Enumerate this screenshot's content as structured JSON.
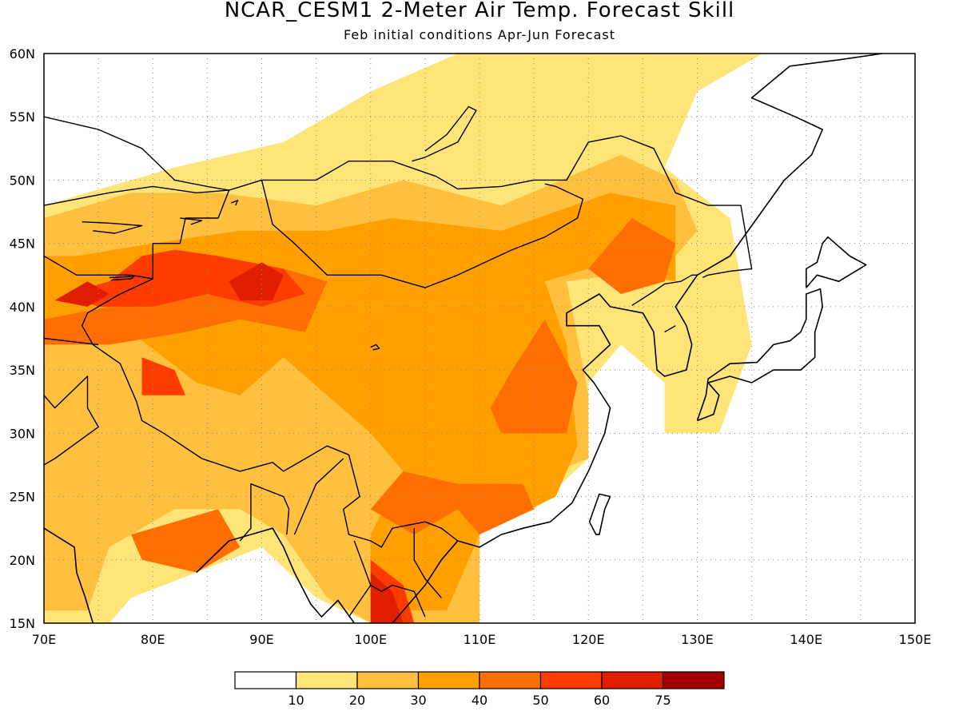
{
  "title": "NCAR_CESM1 2-Meter Air Temp. Forecast Skill",
  "subtitle": "Feb initial conditions  Apr-Jun Forecast",
  "map": {
    "lon_range": [
      70,
      150
    ],
    "lat_range": [
      15,
      60
    ],
    "lon_labels": [
      "70E",
      "80E",
      "90E",
      "100E",
      "110E",
      "120E",
      "130E",
      "140E",
      "150E"
    ],
    "lat_labels": [
      "15N",
      "20N",
      "25N",
      "30N",
      "35N",
      "40N",
      "45N",
      "50N",
      "55N",
      "60N"
    ],
    "grid": "dotted"
  },
  "colorbar": {
    "colors": [
      "#ffffff",
      "#ffe478",
      "#ffc040",
      "#ffa000",
      "#ff6e00",
      "#ff3c00",
      "#e11e00",
      "#a50000"
    ],
    "labels": [
      "10",
      "20",
      "30",
      "40",
      "50",
      "60",
      "75"
    ]
  },
  "fields": {
    "c10": [
      [
        70,
        15
      ],
      [
        76,
        15
      ],
      [
        78,
        17
      ],
      [
        84,
        19
      ],
      [
        90,
        21
      ],
      [
        95,
        17
      ],
      [
        100,
        15
      ],
      [
        110,
        15
      ],
      [
        110,
        24
      ],
      [
        115,
        24
      ],
      [
        120,
        28
      ],
      [
        120,
        34
      ],
      [
        123,
        37
      ],
      [
        127,
        34
      ],
      [
        127,
        30
      ],
      [
        132,
        30
      ],
      [
        135,
        37
      ],
      [
        133,
        47
      ],
      [
        127,
        51
      ],
      [
        130,
        57
      ],
      [
        136,
        60
      ],
      [
        108,
        60
      ],
      [
        100,
        57
      ],
      [
        92,
        53
      ],
      [
        82,
        51
      ],
      [
        70,
        48
      ]
    ],
    "c20": [
      [
        70,
        16
      ],
      [
        74,
        16
      ],
      [
        76,
        21
      ],
      [
        82,
        24
      ],
      [
        88,
        24
      ],
      [
        92,
        22
      ],
      [
        96,
        17
      ],
      [
        100,
        15
      ],
      [
        110,
        15
      ],
      [
        110,
        24
      ],
      [
        114,
        26
      ],
      [
        120,
        28
      ],
      [
        120,
        33
      ],
      [
        118,
        42
      ],
      [
        127,
        43
      ],
      [
        130,
        46
      ],
      [
        128,
        50
      ],
      [
        123,
        52
      ],
      [
        112,
        48
      ],
      [
        103,
        50
      ],
      [
        95,
        48
      ],
      [
        86,
        49
      ],
      [
        78,
        49
      ],
      [
        70,
        47
      ]
    ],
    "c30": [
      [
        70,
        37
      ],
      [
        78,
        38
      ],
      [
        84,
        34
      ],
      [
        88,
        33
      ],
      [
        92,
        36
      ],
      [
        96,
        33
      ],
      [
        100,
        30
      ],
      [
        103,
        27
      ],
      [
        100,
        22
      ],
      [
        100,
        16
      ],
      [
        107,
        16
      ],
      [
        110,
        22
      ],
      [
        117,
        25
      ],
      [
        119,
        29
      ],
      [
        118,
        37
      ],
      [
        116,
        42
      ],
      [
        120,
        43
      ],
      [
        128,
        42
      ],
      [
        128,
        48
      ],
      [
        122,
        49
      ],
      [
        112,
        46
      ],
      [
        102,
        47
      ],
      [
        96,
        46
      ],
      [
        88,
        46
      ],
      [
        80,
        45
      ],
      [
        73,
        44
      ],
      [
        70,
        44
      ]
    ],
    "c40": [
      [
        70,
        39
      ],
      [
        76,
        40
      ],
      [
        80,
        43
      ],
      [
        87,
        42
      ],
      [
        92,
        43
      ],
      [
        96,
        42
      ],
      [
        94,
        38
      ],
      [
        88,
        39
      ],
      [
        83,
        38
      ],
      [
        76,
        37
      ],
      [
        70,
        37
      ]
    ],
    "c40b": [
      [
        112,
        30
      ],
      [
        118,
        30
      ],
      [
        119,
        34
      ],
      [
        116,
        39
      ],
      [
        113,
        35
      ],
      [
        111,
        32
      ]
    ],
    "c40c": [
      [
        100,
        24
      ],
      [
        104,
        22
      ],
      [
        108,
        24
      ],
      [
        110,
        22
      ],
      [
        115,
        24
      ],
      [
        114,
        26
      ],
      [
        108,
        26
      ],
      [
        103,
        27
      ]
    ],
    "c40d": [
      [
        78,
        22
      ],
      [
        86,
        24
      ],
      [
        88,
        21
      ],
      [
        84,
        19
      ],
      [
        79,
        20
      ]
    ],
    "c40e": [
      [
        120,
        43
      ],
      [
        124,
        47
      ],
      [
        128,
        45
      ],
      [
        127,
        42
      ],
      [
        123,
        41
      ]
    ],
    "c50": [
      [
        72,
        41
      ],
      [
        76,
        42
      ],
      [
        79,
        44
      ],
      [
        82,
        44.5
      ],
      [
        86,
        44
      ],
      [
        92,
        43
      ],
      [
        94,
        41
      ],
      [
        90,
        40
      ],
      [
        85,
        41
      ],
      [
        80,
        40
      ],
      [
        75,
        40
      ]
    ],
    "c50b": [
      [
        100,
        15
      ],
      [
        100,
        20
      ],
      [
        103,
        18
      ],
      [
        104,
        15
      ]
    ],
    "c50c": [
      [
        79,
        36
      ],
      [
        82,
        35
      ],
      [
        83,
        33
      ],
      [
        79,
        33
      ]
    ],
    "c60": [
      [
        87,
        42
      ],
      [
        90,
        43.5
      ],
      [
        92,
        42.5
      ],
      [
        91,
        40.5
      ],
      [
        88,
        40.5
      ]
    ],
    "c60b": [
      [
        71,
        40.5
      ],
      [
        74,
        42
      ],
      [
        76,
        41
      ],
      [
        74,
        40
      ]
    ],
    "c60c": [
      [
        100,
        15
      ],
      [
        100,
        19
      ],
      [
        102,
        17.5
      ],
      [
        103,
        15
      ]
    ]
  },
  "coast": [
    [
      70,
      22.5
    ],
    [
      72.8,
      21
    ],
    [
      73,
      19
    ],
    [
      73.8,
      17
    ],
    [
      74.5,
      15
    ]
  ],
  "coast2": [
    [
      84,
      19
    ],
    [
      87,
      21.5
    ],
    [
      89,
      22
    ],
    [
      91,
      22.5
    ],
    [
      92,
      21
    ],
    [
      93,
      19
    ],
    [
      94.5,
      16.5
    ],
    [
      95.5,
      15.5
    ],
    [
      97,
      16.8
    ],
    [
      98.5,
      15
    ]
  ],
  "coast3": [
    [
      102,
      15
    ],
    [
      105,
      18
    ],
    [
      106.5,
      20
    ],
    [
      108,
      21.5
    ],
    [
      110,
      21
    ],
    [
      112,
      22
    ],
    [
      114,
      22.5
    ],
    [
      116.5,
      23
    ],
    [
      118.5,
      24.5
    ],
    [
      120,
      27
    ],
    [
      121.5,
      30
    ],
    [
      122,
      32
    ],
    [
      120.5,
      34
    ],
    [
      119.5,
      35
    ],
    [
      122,
      37
    ],
    [
      121,
      38.5
    ],
    [
      118,
      38.5
    ],
    [
      118,
      39.5
    ],
    [
      121,
      41
    ],
    [
      122,
      40
    ],
    [
      125,
      39.5
    ],
    [
      126,
      38
    ],
    [
      126.3,
      35
    ],
    [
      127,
      34.5
    ],
    [
      129,
      35
    ],
    [
      129.5,
      37
    ],
    [
      129,
      38.5
    ],
    [
      128,
      40
    ],
    [
      130,
      42.5
    ],
    [
      131,
      43
    ],
    [
      133,
      44
    ],
    [
      135.5,
      47
    ],
    [
      138,
      50
    ],
    [
      140.5,
      52
    ],
    [
      141.5,
      54
    ],
    [
      139,
      55
    ],
    [
      135,
      56.5
    ],
    [
      138.5,
      59
    ],
    [
      143,
      59.5
    ],
    [
      147,
      60
    ]
  ],
  "japan": [
    [
      130,
      31
    ],
    [
      131.5,
      31.5
    ],
    [
      132,
      33
    ],
    [
      131,
      34
    ],
    [
      133,
      34.5
    ],
    [
      135,
      34
    ],
    [
      137,
      35
    ],
    [
      139.5,
      35
    ],
    [
      140.8,
      36
    ],
    [
      140.8,
      38
    ],
    [
      141.5,
      40
    ],
    [
      141.3,
      41.4
    ],
    [
      140,
      41
    ],
    [
      140,
      39
    ],
    [
      139.5,
      38
    ],
    [
      138.5,
      37.3
    ],
    [
      137,
      37
    ],
    [
      135.5,
      35.6
    ],
    [
      133,
      35.5
    ],
    [
      131,
      34.3
    ],
    [
      130.8,
      33
    ],
    [
      130,
      31
    ]
  ],
  "hokkaido": [
    [
      140,
      41.5
    ],
    [
      141,
      42.5
    ],
    [
      143,
      42
    ],
    [
      145.5,
      43.3
    ],
    [
      144,
      44
    ],
    [
      142,
      45.5
    ],
    [
      141.5,
      45
    ],
    [
      141,
      43.5
    ],
    [
      140,
      43
    ],
    [
      140,
      41.5
    ]
  ],
  "taiwan": [
    [
      120.1,
      23
    ],
    [
      120.7,
      22
    ],
    [
      121,
      22
    ],
    [
      121.5,
      24
    ],
    [
      122,
      25
    ],
    [
      121,
      25.2
    ],
    [
      120.1,
      23
    ]
  ],
  "borders": [
    [
      [
        70,
        55
      ],
      [
        75,
        54
      ],
      [
        79,
        52.5
      ],
      [
        82,
        50
      ],
      [
        85,
        49.5
      ],
      [
        87,
        49.2
      ],
      [
        90,
        50
      ],
      [
        95,
        50
      ],
      [
        98,
        51.5
      ],
      [
        102,
        51.5
      ],
      [
        106,
        50.3
      ],
      [
        108,
        49.3
      ],
      [
        112,
        49.5
      ],
      [
        115,
        50
      ],
      [
        118,
        50
      ],
      [
        120,
        53
      ],
      [
        123,
        53.5
      ],
      [
        126,
        52.5
      ],
      [
        128,
        49
      ],
      [
        131,
        48
      ],
      [
        134,
        48
      ],
      [
        135,
        43
      ],
      [
        133,
        42.8
      ],
      [
        131,
        42.5
      ],
      [
        130.5,
        42.3
      ]
    ],
    [
      [
        84.5,
        28
      ],
      [
        88,
        27
      ],
      [
        91,
        27.7
      ],
      [
        92,
        27
      ],
      [
        96,
        29
      ],
      [
        98,
        28.3
      ],
      [
        99,
        25
      ],
      [
        97.5,
        24
      ],
      [
        98,
        22
      ],
      [
        100,
        21.5
      ],
      [
        101,
        21
      ],
      [
        102,
        22.5
      ],
      [
        105,
        23
      ],
      [
        106.5,
        22.5
      ],
      [
        108,
        21.5
      ]
    ],
    [
      [
        87,
        49.2
      ],
      [
        86,
        47
      ],
      [
        83,
        47
      ],
      [
        82.5,
        45
      ],
      [
        80,
        45
      ],
      [
        80,
        42.2
      ],
      [
        77,
        41
      ],
      [
        74,
        39.5
      ],
      [
        73.5,
        38.5
      ],
      [
        74.5,
        37
      ],
      [
        77,
        35.5
      ],
      [
        78.5,
        32.5
      ],
      [
        79,
        31
      ],
      [
        81,
        30
      ],
      [
        84.5,
        28
      ]
    ],
    [
      [
        90,
        50
      ],
      [
        91,
        46.5
      ],
      [
        93,
        45
      ],
      [
        96,
        42.5
      ],
      [
        101,
        42.5
      ],
      [
        105,
        41.5
      ],
      [
        108,
        42.5
      ],
      [
        111,
        43.7
      ],
      [
        113,
        44.5
      ],
      [
        116,
        45.5
      ],
      [
        119,
        47
      ],
      [
        119.5,
        48.5
      ],
      [
        117,
        49.5
      ],
      [
        116,
        49.7
      ]
    ],
    [
      [
        124,
        40.1
      ],
      [
        126,
        41.2
      ],
      [
        127,
        41.8
      ],
      [
        128.5,
        42
      ],
      [
        129.5,
        42.5
      ],
      [
        130,
        42.5
      ]
    ],
    [
      [
        127,
        38
      ],
      [
        128,
        38.5
      ]
    ],
    [
      [
        70,
        44
      ],
      [
        73,
        42.5
      ],
      [
        75,
        42.5
      ],
      [
        78,
        42.5
      ],
      [
        80,
        42.2
      ]
    ],
    [
      [
        70,
        48
      ],
      [
        73,
        48.5
      ],
      [
        76,
        49
      ],
      [
        80,
        49.5
      ],
      [
        84,
        49
      ],
      [
        87,
        49.2
      ]
    ],
    [
      [
        70,
        37.5
      ],
      [
        73,
        37.2
      ],
      [
        75,
        37
      ]
    ],
    [
      [
        70,
        33
      ],
      [
        71,
        32
      ],
      [
        74,
        34.5
      ],
      [
        74,
        32
      ],
      [
        75,
        30.5
      ],
      [
        71,
        28
      ],
      [
        70,
        27.5
      ]
    ],
    [
      [
        88,
        21.5
      ],
      [
        89,
        22.5
      ],
      [
        89,
        26
      ],
      [
        92,
        25
      ],
      [
        92.5,
        24
      ],
      [
        92.3,
        22
      ]
    ],
    [
      [
        93,
        22
      ],
      [
        95,
        26
      ],
      [
        97.5,
        28
      ]
    ],
    [
      [
        98.5,
        21.5
      ],
      [
        100,
        18
      ],
      [
        98,
        15.5
      ]
    ],
    [
      [
        100,
        18
      ],
      [
        101,
        17.5
      ],
      [
        102,
        18
      ],
      [
        104,
        17.5
      ],
      [
        105,
        15.5
      ]
    ],
    [
      [
        104,
        22.5
      ],
      [
        104,
        20
      ],
      [
        105,
        18.5
      ],
      [
        106.5,
        17
      ]
    ]
  ],
  "lakes": [
    [
      [
        103.8,
        51.5
      ],
      [
        105,
        51.8
      ],
      [
        108,
        53
      ],
      [
        109.7,
        55.5
      ],
      [
        109,
        55.8
      ],
      [
        107,
        53.6
      ],
      [
        105,
        52.3
      ]
    ],
    [
      [
        73.5,
        46.7
      ],
      [
        76,
        46.6
      ],
      [
        79,
        46.4
      ],
      [
        76.5,
        45.8
      ],
      [
        74.5,
        46
      ]
    ],
    [
      [
        76,
        42.3
      ],
      [
        78.3,
        42.4
      ],
      [
        78,
        42.2
      ],
      [
        76.2,
        42.1
      ]
    ],
    [
      [
        100,
        36.8
      ],
      [
        100.5,
        37
      ],
      [
        100.8,
        36.7
      ],
      [
        100.2,
        36.6
      ]
    ],
    [
      [
        82.5,
        47
      ],
      [
        84.5,
        46.8
      ],
      [
        83.5,
        46.5
      ]
    ],
    [
      [
        87.2,
        48.2
      ],
      [
        87.8,
        48.4
      ],
      [
        87.6,
        48
      ]
    ]
  ]
}
